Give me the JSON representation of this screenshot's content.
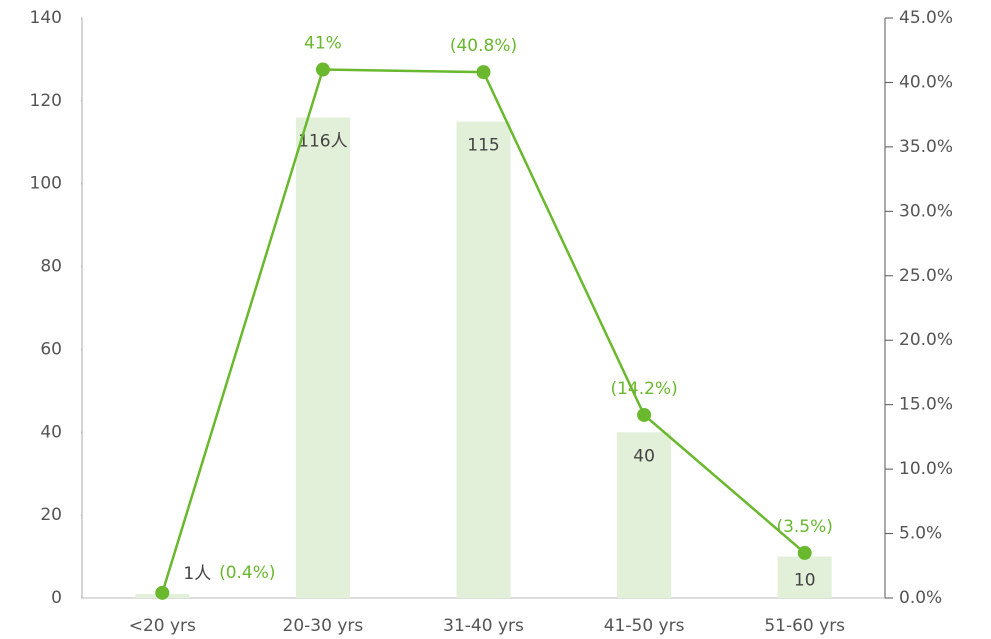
{
  "chart_data": {
    "type": "bar_line",
    "categories": [
      "<20 yrs",
      "20-30 yrs",
      "31-40 yrs",
      "41-50 yrs",
      "51-60 yrs"
    ],
    "series": [
      {
        "type": "bar",
        "color": "#e2efd9",
        "values": [
          1,
          116,
          115,
          40,
          10
        ],
        "value_labels": [
          "1人",
          "116人",
          "115",
          "40",
          "10"
        ]
      },
      {
        "type": "line",
        "axis": "y2",
        "color": "#6ab82e",
        "values": [
          0.4,
          41,
          40.8,
          14.2,
          3.5
        ],
        "value_labels": [
          "(0.4%)",
          "41%",
          "(40.8%)",
          "(14.2%)",
          "(3.5%)"
        ]
      }
    ],
    "ylim": [
      0,
      140
    ],
    "yticks": [
      0,
      20,
      40,
      60,
      80,
      100,
      120,
      140
    ],
    "y2lim": [
      0,
      45
    ],
    "y2ticks": [
      {
        "value": 0,
        "label": "0.0%"
      },
      {
        "value": 5,
        "label": "5.0%"
      },
      {
        "value": 10,
        "label": "10.0%"
      },
      {
        "value": 15,
        "label": "15.0%"
      },
      {
        "value": 20,
        "label": "20.0%"
      },
      {
        "value": 25,
        "label": "25.0%"
      },
      {
        "value": 30,
        "label": "30.0%"
      },
      {
        "value": 35,
        "label": "35.0%"
      },
      {
        "value": 40,
        "label": "40.0%"
      },
      {
        "value": 45,
        "label": "45.0%"
      }
    ]
  }
}
